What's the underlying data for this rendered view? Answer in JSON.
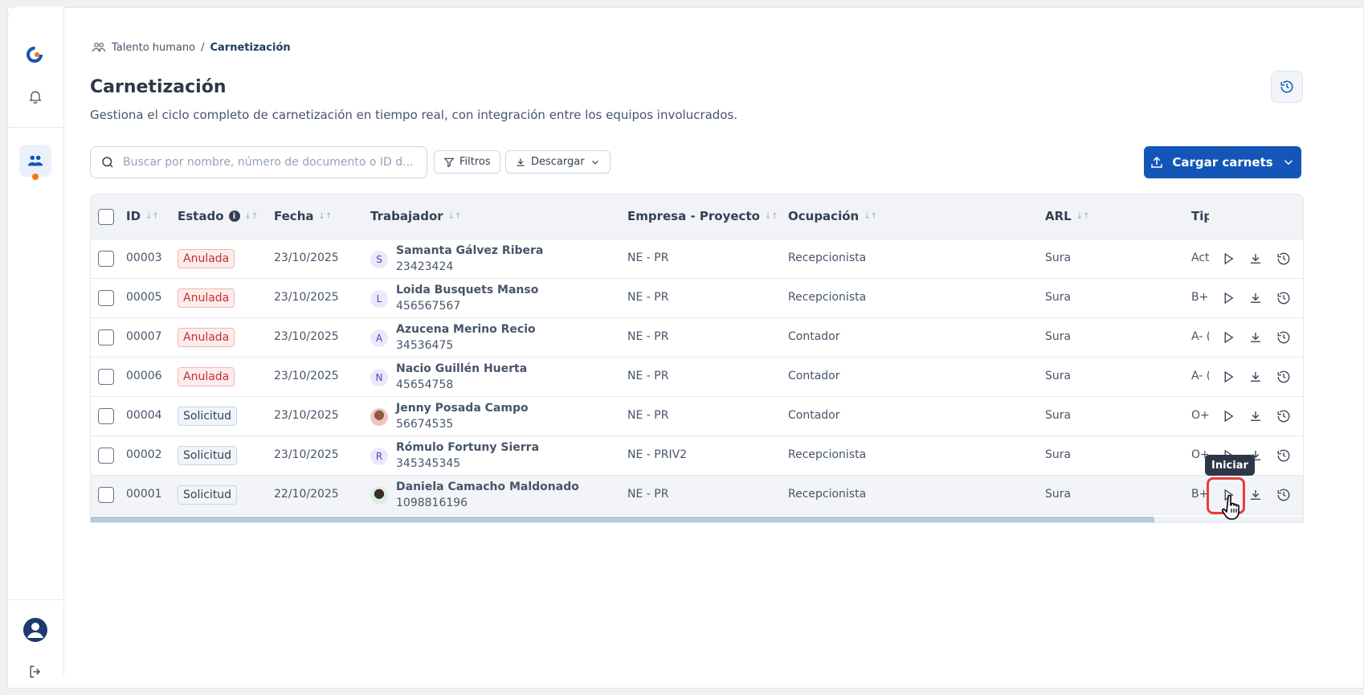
{
  "breadcrumb": {
    "parent": "Talento humano",
    "separator": "/",
    "current": "Carnetización"
  },
  "page": {
    "title": "Carnetización",
    "subtitle": "Gestiona el ciclo completo de carnetización en tiempo real, con integración entre los equipos involucrados."
  },
  "toolbar": {
    "search_placeholder": "Buscar por nombre, número de documento o ID d...",
    "filters_label": "Filtros",
    "download_label": "Descargar",
    "upload_label": "Cargar carnets"
  },
  "table": {
    "headers": {
      "id": "ID",
      "estado": "Estado",
      "fecha": "Fecha",
      "trabajador": "Trabajador",
      "empresa": "Empresa - Proyecto",
      "ocupacion": "Ocupación",
      "arl": "ARL",
      "tipo": "Tip"
    },
    "rows": [
      {
        "id": "00003",
        "estado": "Anulada",
        "fecha": "23/10/2025",
        "initial": "S",
        "name": "Samanta Gálvez Ribera",
        "doc": "23423424",
        "empresa": "NE - PR",
        "ocupacion": "Recepcionista",
        "arl": "Sura",
        "tipo": "Act"
      },
      {
        "id": "00005",
        "estado": "Anulada",
        "fecha": "23/10/2025",
        "initial": "L",
        "name": "Loida Busquets Manso",
        "doc": "456567567",
        "empresa": "NE - PR",
        "ocupacion": "Recepcionista",
        "arl": "Sura",
        "tipo": "B+ ("
      },
      {
        "id": "00007",
        "estado": "Anulada",
        "fecha": "23/10/2025",
        "initial": "A",
        "name": "Azucena Merino Recio",
        "doc": "34536475",
        "empresa": "NE - PR",
        "ocupacion": "Contador",
        "arl": "Sura",
        "tipo": "A- ("
      },
      {
        "id": "00006",
        "estado": "Anulada",
        "fecha": "23/10/2025",
        "initial": "N",
        "name": "Nacio Guillén Huerta",
        "doc": "45654758",
        "empresa": "NE - PR",
        "ocupacion": "Contador",
        "arl": "Sura",
        "tipo": "A- ("
      },
      {
        "id": "00004",
        "estado": "Solicitud",
        "fecha": "23/10/2025",
        "initial": "",
        "name": "Jenny Posada Campo",
        "doc": "56674535",
        "empresa": "NE - PR",
        "ocupacion": "Contador",
        "arl": "Sura",
        "tipo": "O+"
      },
      {
        "id": "00002",
        "estado": "Solicitud",
        "fecha": "23/10/2025",
        "initial": "R",
        "name": "Rómulo Fortuny Sierra",
        "doc": "345345345",
        "empresa": "NE - PRIV2",
        "ocupacion": "Recepcionista",
        "arl": "Sura",
        "tipo": "O+"
      },
      {
        "id": "00001",
        "estado": "Solicitud",
        "fecha": "22/10/2025",
        "initial": "",
        "name": "Daniela Camacho Maldonado",
        "doc": "1098816196",
        "empresa": "NE - PR",
        "ocupacion": "Recepcionista",
        "arl": "Sura",
        "tipo": "B+"
      }
    ]
  },
  "tooltip": {
    "text": "Iniciar"
  },
  "colors": {
    "primary": "#1456b8",
    "anulada": "#c53030",
    "accent_orange": "#f97316"
  },
  "icons": [
    "logo-icon",
    "bell-icon",
    "users-icon",
    "user-avatar-icon",
    "logout-icon",
    "history-icon",
    "search-icon",
    "filter-icon",
    "download-icon",
    "upload-icon",
    "chevron-down-icon",
    "sort-icon",
    "info-icon",
    "play-icon",
    "hand-cursor-icon"
  ]
}
